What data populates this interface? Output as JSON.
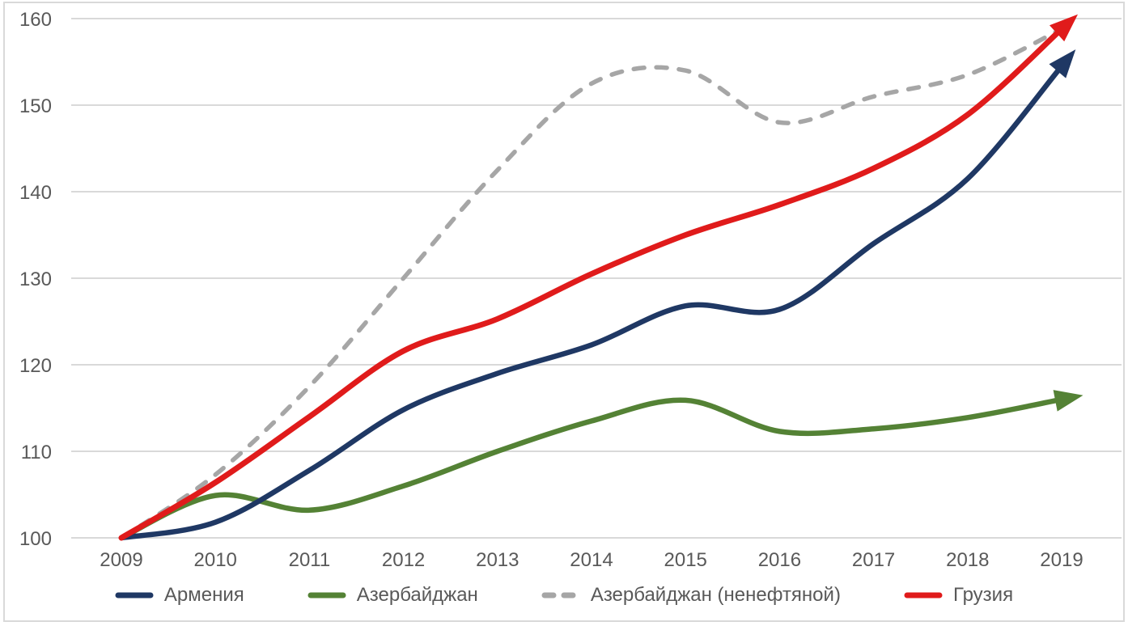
{
  "chart_data": {
    "type": "line",
    "title": "",
    "categories": [
      "2009",
      "2010",
      "2011",
      "2012",
      "2013",
      "2014",
      "2015",
      "2016",
      "2017",
      "2018",
      "2019"
    ],
    "x": [
      2009,
      2010,
      2011,
      2012,
      2013,
      2014,
      2015,
      2016,
      2017,
      2018,
      2019
    ],
    "series": [
      {
        "name": "Армения",
        "color": "#1f3864",
        "style": "solid",
        "arrow": true,
        "values": [
          100,
          101.8,
          107.8,
          114.8,
          119.0,
          122.3,
          126.8,
          126.4,
          134.0,
          141.5,
          154.5
        ]
      },
      {
        "name": "Азербайджан",
        "color": "#548235",
        "style": "solid",
        "arrow": true,
        "values": [
          100,
          104.9,
          103.2,
          106.0,
          110.0,
          113.5,
          115.9,
          112.3,
          112.6,
          113.9,
          116.0
        ]
      },
      {
        "name": "Азербайджан (ненефтяной)",
        "color": "#a6a6a6",
        "style": "dashed",
        "arrow": false,
        "values": [
          100,
          107.3,
          117.5,
          130.0,
          142.5,
          152.5,
          154.0,
          148.0,
          151.0,
          153.5,
          158.8
        ]
      },
      {
        "name": "Грузия",
        "color": "#e01b1b",
        "style": "solid",
        "arrow": true,
        "values": [
          100,
          106.4,
          114.0,
          121.6,
          125.3,
          130.5,
          135.0,
          138.5,
          142.7,
          148.9,
          158.8
        ]
      }
    ],
    "yticks": [
      100,
      110,
      120,
      130,
      140,
      150,
      160
    ],
    "ylim": [
      100,
      160
    ],
    "xlabel": "",
    "ylabel": "",
    "grid": "horizontal",
    "legend_position": "bottom",
    "style": {
      "grid_color": "#d9d9d9",
      "axis_text_color": "#595959",
      "background": "#ffffff",
      "frame_color": "#d9d9d9"
    }
  }
}
